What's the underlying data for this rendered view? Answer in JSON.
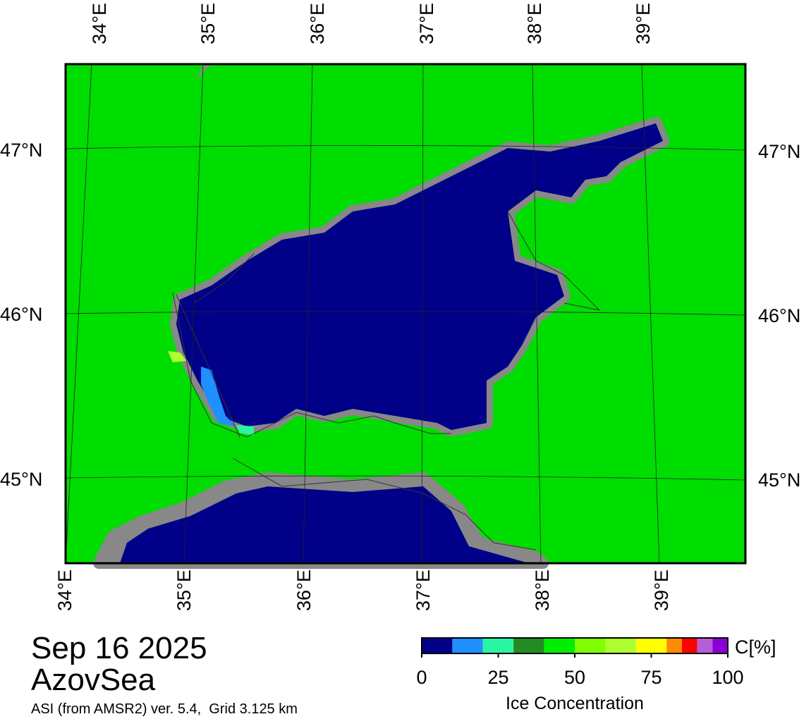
{
  "map": {
    "lon_labels_top": [
      "34°E",
      "35°E",
      "36°E",
      "37°E",
      "38°E",
      "39°E"
    ],
    "lon_labels_bottom": [
      "34°E",
      "35°E",
      "36°E",
      "37°E",
      "38°E",
      "39°E"
    ],
    "lat_labels_left": [
      "47°N",
      "46°N",
      "45°N"
    ],
    "lat_labels_right": [
      "47°N",
      "46°N",
      "45°N"
    ]
  },
  "caption": {
    "date": "Sep 16 2025",
    "region": "AzovSea",
    "source": "ASI (from AMSR2) ver. 5.4,  Grid 3.125 km"
  },
  "colorbar": {
    "unit": "C[%]",
    "label": "Ice Concentration",
    "lim": [
      0,
      100
    ],
    "ticks": [
      0,
      25,
      50,
      75,
      100
    ],
    "bounds": [
      0,
      10,
      20,
      30,
      40,
      50,
      60,
      70,
      80,
      85,
      90,
      95,
      100
    ],
    "colors": [
      "#000088",
      "#1e90ff",
      "#2af5a0",
      "#228b22",
      "#00ee00",
      "#7fff00",
      "#adff2f",
      "#ffff00",
      "#ff8c00",
      "#ff0000",
      "#b45fd9",
      "#8a00d4"
    ]
  }
}
